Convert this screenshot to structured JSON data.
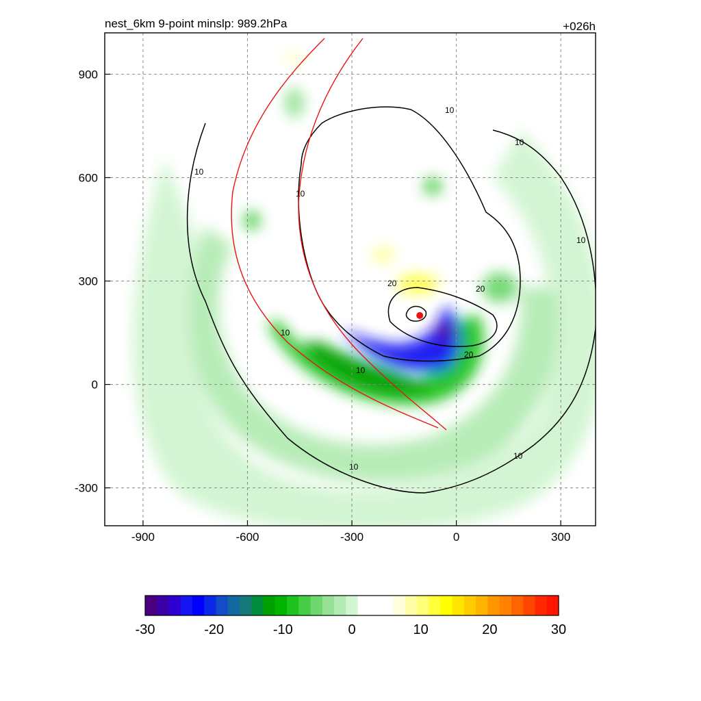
{
  "chart_data": {
    "type": "heatmap",
    "title": "nest_6km  9-point minslp: 989.2hPa",
    "time_label": "+026h",
    "xlim": [
      -1010,
      400
    ],
    "ylim": [
      -410,
      1020
    ],
    "x_ticks": [
      "-900",
      "-600",
      "-300",
      "0",
      "300"
    ],
    "y_ticks": [
      "900",
      "600",
      "300",
      "0",
      "-300"
    ],
    "x_tick_values": [
      -900,
      -600,
      -300,
      0,
      300
    ],
    "y_tick_values": [
      900,
      600,
      300,
      0,
      -300
    ],
    "grid": true,
    "center_marker": {
      "x": -105,
      "y": 200,
      "color": "#ee1111"
    },
    "contour_labels": [
      "10",
      "20"
    ],
    "colorbar": {
      "labels": [
        "-30",
        "-20",
        "-10",
        "0",
        "10",
        "20",
        "30"
      ],
      "min": -30,
      "max": 30,
      "colors": [
        "#4b0082",
        "#3c00a8",
        "#2c00d0",
        "#1414f0",
        "#0000ff",
        "#0a28e6",
        "#124cc8",
        "#1468a0",
        "#147878",
        "#008c3c",
        "#00a000",
        "#00b400",
        "#1ec31e",
        "#46cd46",
        "#6ed76e",
        "#96e196",
        "#b4ebb4",
        "#d2f5d2",
        "#ffffff",
        "#ffffff",
        "#ffffff",
        "#ffffdc",
        "#ffffaa",
        "#ffff78",
        "#ffff3c",
        "#ffff00",
        "#ffe600",
        "#ffcc00",
        "#ffb400",
        "#ff9600",
        "#ff8200",
        "#ff6400",
        "#ff4600",
        "#ff2800",
        "#ff1400"
      ]
    }
  }
}
